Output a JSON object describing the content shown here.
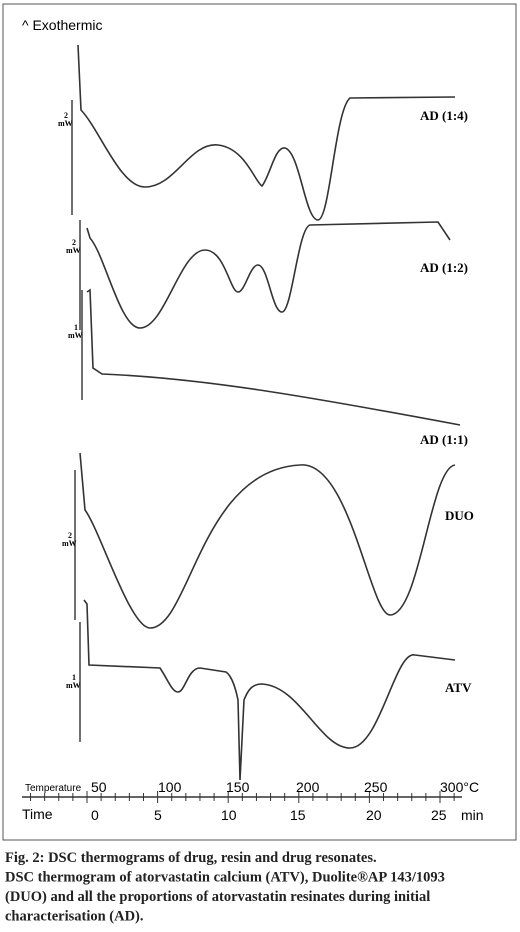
{
  "figure": {
    "exotherm_label": "^ Exothermic",
    "curves": [
      {
        "label": "AD (1:4)",
        "scale_value": "2",
        "scale_unit": "mW"
      },
      {
        "label": "AD (1:2)",
        "scale_value": "2",
        "scale_unit": "mW"
      },
      {
        "label": "AD (1:1)",
        "scale_value": "1",
        "scale_unit": "mW"
      },
      {
        "label": "DUO",
        "scale_value": "2",
        "scale_unit": "mW"
      },
      {
        "label": "ATV",
        "scale_value": "1",
        "scale_unit": "mW"
      }
    ],
    "temperature_title": "Temperature",
    "temperature_labels": [
      "50",
      "100",
      "150",
      "200",
      "250",
      "300°C"
    ],
    "time_title": "Time",
    "time_labels": [
      "0",
      "5",
      "10",
      "15",
      "20",
      "25",
      "min"
    ]
  },
  "caption": {
    "lines": [
      "Fig. 2: DSC thermograms of drug, resin and drug resonates.",
      "DSC thermogram of atorvastatin calcium (ATV), Duolite®AP 143/1093",
      "(DUO) and all the proportions of atorvastatin resinates during initial",
      "characterisation (AD)."
    ]
  }
}
